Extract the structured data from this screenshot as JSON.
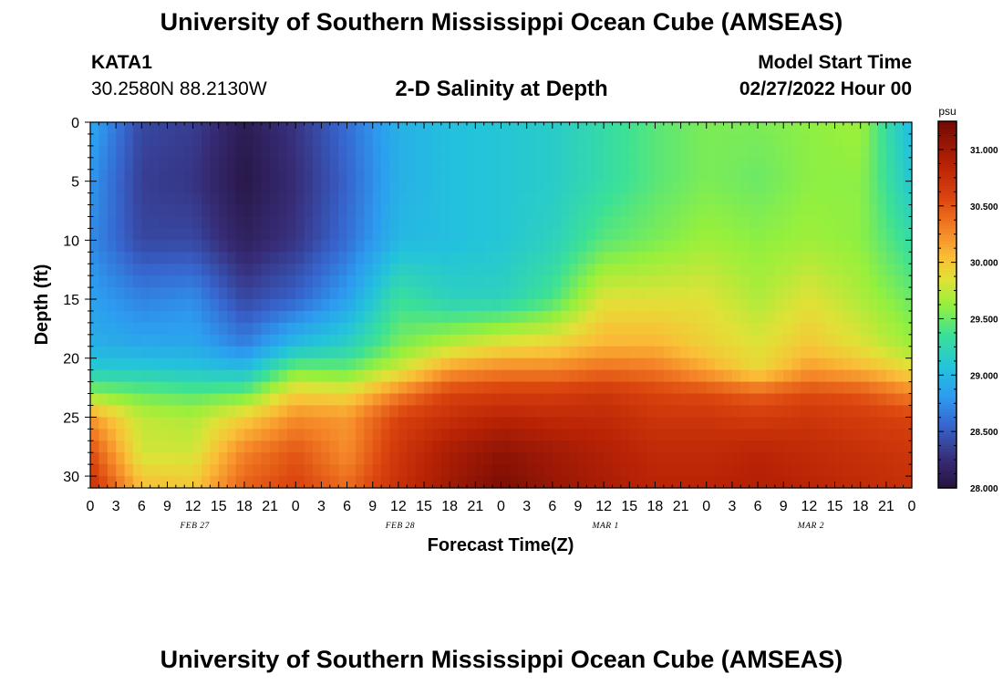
{
  "header": {
    "title": "University of Southern Mississippi Ocean Cube (AMSEAS)",
    "station": "KATA1",
    "coords": "30.2580N  88.2130W",
    "plot_title": "2-D Salinity at Depth",
    "model_start_label": "Model Start Time",
    "model_start_value": "02/27/2022 Hour 00"
  },
  "footer": {
    "title": "University of Southern Mississippi Ocean Cube (AMSEAS)"
  },
  "chart_data": {
    "type": "heatmap",
    "title": "2-D Salinity at Depth",
    "xlabel": "Forecast Time(Z)",
    "ylabel": "Depth (ft)",
    "x_ticks": [
      "0",
      "3",
      "6",
      "9",
      "12",
      "15",
      "18",
      "21",
      "0",
      "3",
      "6",
      "9",
      "12",
      "15",
      "18",
      "21",
      "0",
      "3",
      "6",
      "9",
      "12",
      "15",
      "18",
      "21",
      "0",
      "3",
      "6",
      "9",
      "12",
      "15",
      "18",
      "21",
      "0"
    ],
    "date_labels": [
      {
        "label": "FEB 27",
        "hour": 12
      },
      {
        "label": "FEB 28",
        "hour": 36
      },
      {
        "label": "MAR 1",
        "hour": 60
      },
      {
        "label": "MAR 2",
        "hour": 84
      }
    ],
    "xlim_hours": [
      0,
      96
    ],
    "ylim_ft": [
      0,
      31
    ],
    "y_ticks": [
      0,
      5,
      10,
      15,
      20,
      25,
      30
    ],
    "colorbar": {
      "unit": "psu",
      "min": 28.0,
      "max": 31.25,
      "ticks": [
        "28.000",
        "28.500",
        "29.000",
        "29.500",
        "30.000",
        "30.500",
        "31.000"
      ],
      "tick_values": [
        28.0,
        28.5,
        29.0,
        29.5,
        30.0,
        30.5,
        31.0
      ]
    },
    "hours": [
      0,
      6,
      12,
      18,
      24,
      30,
      36,
      42,
      48,
      54,
      60,
      66,
      72,
      78,
      84,
      90,
      96
    ],
    "depths_ft": [
      0,
      5,
      10,
      15,
      19,
      21,
      23,
      25,
      28,
      31
    ],
    "values": [
      [
        28.9,
        28.4,
        28.35,
        28.1,
        28.3,
        28.6,
        28.95,
        29.05,
        29.1,
        29.15,
        29.3,
        29.45,
        29.55,
        29.55,
        29.6,
        29.65,
        29.0
      ],
      [
        28.8,
        28.35,
        28.3,
        28.05,
        28.25,
        28.55,
        28.95,
        29.05,
        29.1,
        29.15,
        29.3,
        29.45,
        29.55,
        29.5,
        29.6,
        29.6,
        29.1
      ],
      [
        28.75,
        28.4,
        28.4,
        28.15,
        28.3,
        28.6,
        29.0,
        29.05,
        29.1,
        29.2,
        29.45,
        29.55,
        29.65,
        29.6,
        29.65,
        29.6,
        29.3
      ],
      [
        28.85,
        28.7,
        28.75,
        28.4,
        28.55,
        28.85,
        29.35,
        29.2,
        29.2,
        29.4,
        29.85,
        29.85,
        29.85,
        29.7,
        29.85,
        29.7,
        29.5
      ],
      [
        28.95,
        28.9,
        28.9,
        28.7,
        29.05,
        29.2,
        29.55,
        29.75,
        29.9,
        29.95,
        30.1,
        30.1,
        29.95,
        29.85,
        30.0,
        29.85,
        29.65
      ],
      [
        29.15,
        29.15,
        29.1,
        29.05,
        29.55,
        29.5,
        29.8,
        30.2,
        30.3,
        30.3,
        30.4,
        30.35,
        30.15,
        29.9,
        30.2,
        30.1,
        29.9
      ],
      [
        29.6,
        29.5,
        29.45,
        29.5,
        29.95,
        29.9,
        30.3,
        30.6,
        30.65,
        30.65,
        30.7,
        30.6,
        30.55,
        30.45,
        30.55,
        30.5,
        30.3
      ],
      [
        30.2,
        29.75,
        29.7,
        29.95,
        30.25,
        30.2,
        30.6,
        30.75,
        30.85,
        30.8,
        30.8,
        30.7,
        30.7,
        30.65,
        30.7,
        30.65,
        30.6
      ],
      [
        30.55,
        29.8,
        29.8,
        30.3,
        30.5,
        30.25,
        30.7,
        30.95,
        31.1,
        31.0,
        30.9,
        30.8,
        30.8,
        30.85,
        30.8,
        30.75,
        30.7
      ],
      [
        30.75,
        30.05,
        30.0,
        30.45,
        30.6,
        30.4,
        30.75,
        31.0,
        31.2,
        31.05,
        30.95,
        30.85,
        30.85,
        30.9,
        30.85,
        30.8,
        30.75
      ]
    ]
  }
}
